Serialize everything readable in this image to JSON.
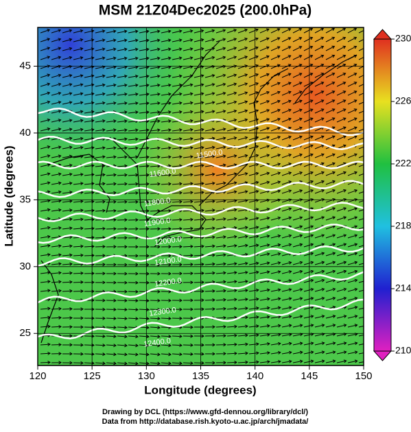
{
  "chart_data": {
    "type": "map",
    "title": "MSM 21Z04Dec2025 (200.0hPa)",
    "xlabel": "Longitude (degrees)",
    "ylabel": "Latitude  (degrees)",
    "xlim": [
      120,
      150
    ],
    "xticks": [
      120,
      125,
      130,
      135,
      140,
      145,
      150
    ],
    "ylim": [
      22.6,
      47.9
    ],
    "yticks": [
      25,
      30,
      35,
      40,
      45
    ],
    "grid": true,
    "colorbar": {
      "lim": [
        210,
        230
      ],
      "ticks": [
        210,
        214,
        218,
        222,
        226,
        230
      ]
    },
    "contour_labels": [
      {
        "value": 11500,
        "label": "11500.0"
      },
      {
        "value": 11600,
        "label": "11600.0"
      },
      {
        "value": 11800,
        "label": "11800.0"
      },
      {
        "value": 11900,
        "label": "11900.0"
      },
      {
        "value": 12000,
        "label": "12000.0"
      },
      {
        "value": 12100,
        "label": "12100.0"
      },
      {
        "value": 12200,
        "label": "12200.0"
      },
      {
        "value": 12300,
        "label": "12300.0"
      },
      {
        "value": 12400,
        "label": "12400.0"
      }
    ],
    "credits": [
      "Drawing by DCL (https://www.gfd-dennou.org/library/dcl/)",
      "Data from http://database.rish.kyoto-u.ac.jp/arch/jmadata/"
    ]
  }
}
